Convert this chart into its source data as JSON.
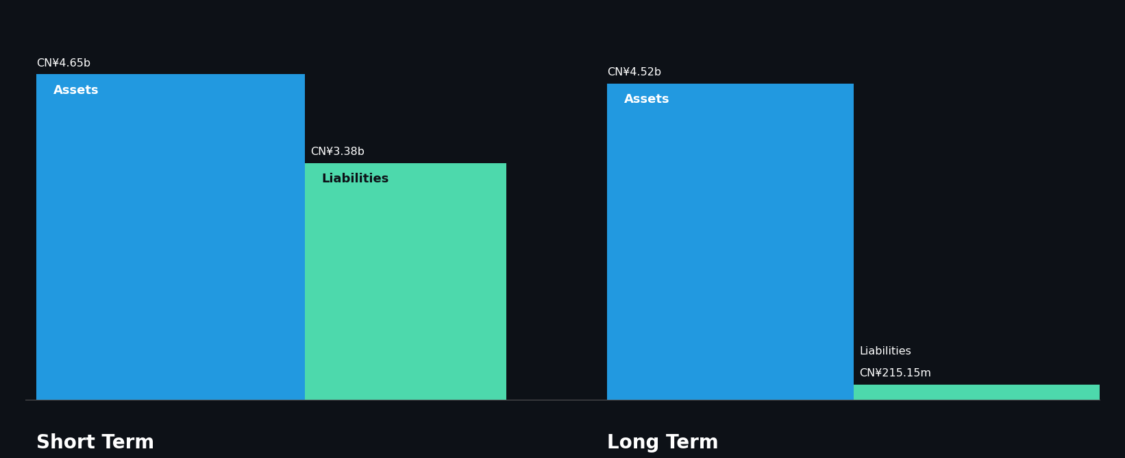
{
  "background_color": "#0d1117",
  "short_term": {
    "assets_value": 4.65,
    "assets_label": "CN¥4.65b",
    "assets_color": "#2299e0",
    "liabilities_value": 3.38,
    "liabilities_label": "CN¥3.38b",
    "liabilities_color": "#4dd9ac",
    "assets_text": "Assets",
    "liabilities_text": "Liabilities",
    "section_label": "Short Term"
  },
  "long_term": {
    "assets_value": 4.52,
    "assets_label": "CN¥4.52b",
    "assets_color": "#2299e0",
    "liabilities_value": 0.21515,
    "liabilities_label": "CN¥215.15m",
    "liabilities_color": "#4dd9ac",
    "assets_text": "Assets",
    "liabilities_text": "Liabilities",
    "section_label": "Long Term"
  },
  "max_value": 4.65,
  "label_color_outside": "#ffffff",
  "label_color_inside_dark": "#0d1117"
}
